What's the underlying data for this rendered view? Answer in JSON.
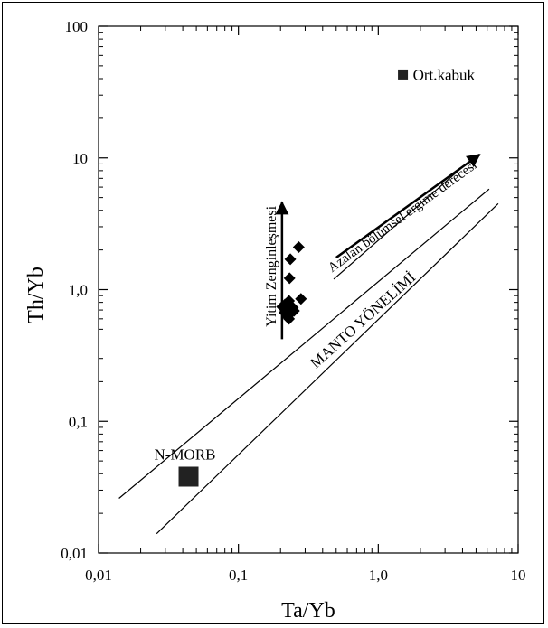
{
  "chart_data": {
    "type": "scatter",
    "title": "",
    "xlabel": "Ta/Yb",
    "ylabel": "Th/Yb",
    "x_scale": "log",
    "y_scale": "log",
    "xlim": [
      0.01,
      10
    ],
    "ylim": [
      0.01,
      100
    ],
    "grid": false,
    "x_ticks": [
      {
        "value": 0.01,
        "label": "0,01"
      },
      {
        "value": 0.1,
        "label": "0,1"
      },
      {
        "value": 1,
        "label": "1,0"
      },
      {
        "value": 10,
        "label": "10"
      }
    ],
    "y_ticks": [
      {
        "value": 0.01,
        "label": "0,01"
      },
      {
        "value": 0.1,
        "label": "0,1"
      },
      {
        "value": 1,
        "label": "1,0"
      },
      {
        "value": 10,
        "label": "10"
      },
      {
        "value": 100,
        "label": "100"
      }
    ],
    "series": [
      {
        "marker": "diamond",
        "color": "#000000",
        "points": [
          {
            "x": 0.27,
            "y": 2.1
          },
          {
            "x": 0.235,
            "y": 1.7
          },
          {
            "x": 0.232,
            "y": 1.22
          },
          {
            "x": 0.28,
            "y": 0.85
          },
          {
            "x": 0.23,
            "y": 0.82
          },
          {
            "x": 0.215,
            "y": 0.77
          },
          {
            "x": 0.205,
            "y": 0.74
          },
          {
            "x": 0.245,
            "y": 0.73
          },
          {
            "x": 0.22,
            "y": 0.7
          },
          {
            "x": 0.25,
            "y": 0.69
          },
          {
            "x": 0.213,
            "y": 0.67
          },
          {
            "x": 0.235,
            "y": 0.66
          },
          {
            "x": 0.225,
            "y": 0.62
          },
          {
            "x": 0.23,
            "y": 0.6
          }
        ]
      }
    ],
    "reference_points": [
      {
        "label": "N-MORB",
        "x": 0.044,
        "y": 0.038,
        "marker": "square-large"
      },
      {
        "label": "Ort.kabuk",
        "x": 1.5,
        "y": 43,
        "marker": "square-small"
      }
    ],
    "lines": [
      {
        "name": "upper-boundary",
        "from": {
          "x": 0.014,
          "y": 0.026
        },
        "to": {
          "x": 6.2,
          "y": 5.8
        }
      },
      {
        "name": "lower-boundary",
        "from": {
          "x": 0.026,
          "y": 0.014
        },
        "to": {
          "x": 7.2,
          "y": 4.5
        }
      },
      {
        "name": "azalan-arrow-line",
        "from": {
          "x": 0.48,
          "y": 1.2
        },
        "to": {
          "x": 4.2,
          "y": 8.9
        }
      }
    ],
    "arrows": [
      {
        "name": "yitim-arrow",
        "from": {
          "x": 0.205,
          "y": 0.42
        },
        "to": {
          "x": 0.205,
          "y": 4.6
        }
      },
      {
        "name": "azalan-arrow",
        "from": {
          "x": 0.5,
          "y": 1.75
        },
        "to": {
          "x": 5.3,
          "y": 10.6
        }
      }
    ],
    "annotations": [
      {
        "text": "Yitim Zenginleşmesi",
        "x": 0.185,
        "y": 1.5,
        "rotation": -90
      },
      {
        "text": "Azalan bölümsel ergime derecesi",
        "x": 1.55,
        "y": 3.4,
        "rotation": -36
      },
      {
        "text": "MANTO YÖNELİMİ",
        "x": 0.82,
        "y": 0.55,
        "rotation": -42
      }
    ]
  }
}
